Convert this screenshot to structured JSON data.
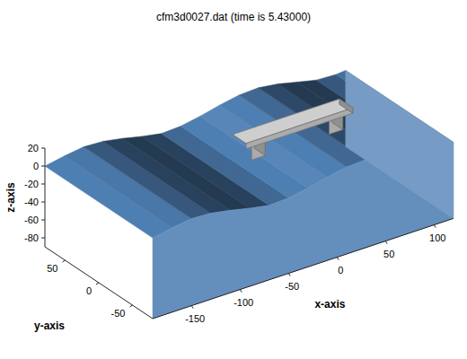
{
  "chart_data": {
    "type": "surface3d",
    "title": "cfm3d0027.dat (time is 5.43000)",
    "xlabel": "x-axis",
    "ylabel": "y-axis",
    "zlabel": "z-axis",
    "xlim": [
      -190,
      120
    ],
    "xticks": [
      -150,
      -100,
      -50,
      0,
      50,
      100
    ],
    "ylim": [
      -80,
      80
    ],
    "yticks": [
      -50,
      0,
      50
    ],
    "zlim": [
      -90,
      20
    ],
    "zticks": [
      -80,
      -60,
      -40,
      -20,
      0,
      20
    ],
    "color": "#4f80b4",
    "surface": {
      "x": [
        -190,
        -170,
        -150,
        -130,
        -110,
        -90,
        -70,
        -50,
        -30,
        -10,
        10,
        30,
        50,
        70,
        90,
        110,
        120
      ],
      "z": [
        0,
        4,
        7,
        6,
        2,
        -3,
        -7,
        -6,
        -2,
        3,
        7,
        8,
        5,
        0,
        -5,
        -6,
        -5
      ]
    },
    "bridge": {
      "color": "#b4b4b4",
      "deck": {
        "x": [
          -45,
          65
        ],
        "y": [
          -10,
          10
        ],
        "z": [
          12,
          18
        ]
      },
      "piers": [
        {
          "x": [
            -38,
            -24
          ],
          "y": [
            -8,
            8
          ],
          "z": [
            -4,
            12
          ]
        },
        {
          "x": [
            42,
            56
          ],
          "y": [
            -8,
            8
          ],
          "z": [
            -4,
            12
          ]
        }
      ]
    }
  }
}
